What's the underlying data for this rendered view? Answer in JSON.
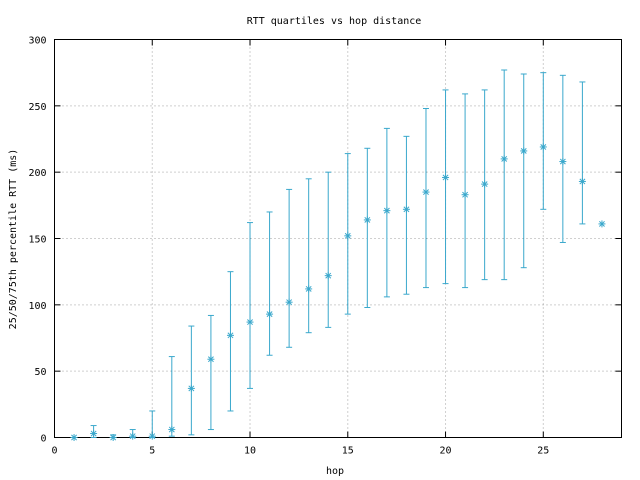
{
  "chart_data": {
    "type": "scatter",
    "title": "RTT quartiles vs hop distance",
    "xlabel": "hop",
    "ylabel": "25/50/75th percentile RTT (ms)",
    "xlim": [
      0,
      29
    ],
    "ylim": [
      0,
      300
    ],
    "xticks": [
      0,
      5,
      10,
      15,
      20,
      25
    ],
    "yticks": [
      0,
      50,
      100,
      150,
      200,
      250,
      300
    ],
    "grid": true,
    "color": "#3aa8cc",
    "series": [
      {
        "points": [
          {
            "x": 1,
            "p25": 0,
            "median": 0,
            "p75": 0
          },
          {
            "x": 2,
            "p25": 0,
            "median": 3,
            "p75": 9
          },
          {
            "x": 3,
            "p25": 0,
            "median": 0,
            "p75": 2
          },
          {
            "x": 4,
            "p25": 0,
            "median": 1,
            "p75": 6
          },
          {
            "x": 5,
            "p25": 0,
            "median": 1,
            "p75": 20
          },
          {
            "x": 6,
            "p25": 1,
            "median": 6,
            "p75": 61
          },
          {
            "x": 7,
            "p25": 2,
            "median": 37,
            "p75": 84
          },
          {
            "x": 8,
            "p25": 6,
            "median": 59,
            "p75": 92
          },
          {
            "x": 9,
            "p25": 20,
            "median": 77,
            "p75": 125
          },
          {
            "x": 10,
            "p25": 37,
            "median": 87,
            "p75": 162
          },
          {
            "x": 11,
            "p25": 62,
            "median": 93,
            "p75": 170
          },
          {
            "x": 12,
            "p25": 68,
            "median": 102,
            "p75": 187
          },
          {
            "x": 13,
            "p25": 79,
            "median": 112,
            "p75": 195
          },
          {
            "x": 14,
            "p25": 83,
            "median": 122,
            "p75": 200
          },
          {
            "x": 15,
            "p25": 93,
            "median": 152,
            "p75": 214
          },
          {
            "x": 16,
            "p25": 98,
            "median": 164,
            "p75": 218
          },
          {
            "x": 17,
            "p25": 106,
            "median": 171,
            "p75": 233
          },
          {
            "x": 18,
            "p25": 108,
            "median": 172,
            "p75": 227
          },
          {
            "x": 19,
            "p25": 113,
            "median": 185,
            "p75": 248
          },
          {
            "x": 20,
            "p25": 116,
            "median": 196,
            "p75": 262
          },
          {
            "x": 21,
            "p25": 113,
            "median": 183,
            "p75": 259
          },
          {
            "x": 22,
            "p25": 119,
            "median": 191,
            "p75": 262
          },
          {
            "x": 23,
            "p25": 119,
            "median": 210,
            "p75": 277
          },
          {
            "x": 24,
            "p25": 128,
            "median": 216,
            "p75": 274
          },
          {
            "x": 25,
            "p25": 172,
            "median": 219,
            "p75": 275
          },
          {
            "x": 26,
            "p25": 147,
            "median": 208,
            "p75": 273
          },
          {
            "x": 27,
            "p25": 161,
            "median": 193,
            "p75": 268
          },
          {
            "x": 28,
            "p25": 161,
            "median": 161,
            "p75": 161
          }
        ]
      }
    ]
  }
}
